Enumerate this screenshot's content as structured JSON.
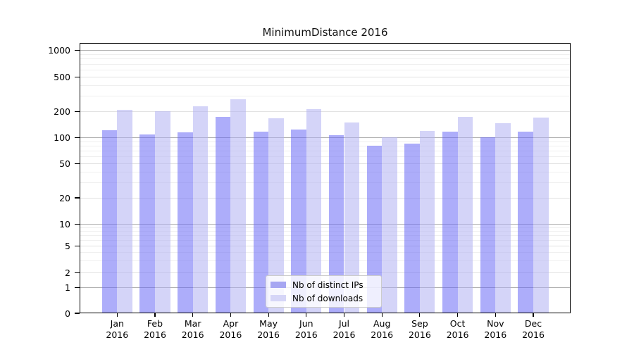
{
  "title": "MinimumDistance 2016",
  "legend": {
    "items": [
      {
        "label": "Nb of distinct IPs",
        "color": "#a7a7f2"
      },
      {
        "label": "Nb of downloads",
        "color": "#d6d6f7"
      }
    ]
  },
  "colors": {
    "bar_ips": "rgba(106,106,246,0.55)",
    "bar_downloads": "rgba(176,176,242,0.55)",
    "grid_major": "#b0b0b0",
    "grid_mid": "#e2e2e2",
    "grid_minor": "#efefef",
    "axis": "#000000"
  },
  "chart_data": {
    "type": "bar",
    "title": "MinimumDistance 2016",
    "categories": [
      "Jan",
      "Feb",
      "Mar",
      "Apr",
      "May",
      "Jun",
      "Jul",
      "Aug",
      "Sep",
      "Oct",
      "Nov",
      "Dec"
    ],
    "year": "2016",
    "series": [
      {
        "name": "Nb of distinct IPs",
        "values": [
          122,
          109,
          116,
          175,
          118,
          124,
          107,
          81,
          85,
          117,
          101,
          118
        ]
      },
      {
        "name": "Nb of downloads",
        "values": [
          210,
          200,
          231,
          277,
          166,
          211,
          150,
          102,
          120,
          175,
          147,
          171
        ]
      }
    ],
    "xlabel": "",
    "ylabel": "",
    "yscale": "log (symlog-like, 0 at baseline)",
    "yticks": [
      0,
      1,
      2,
      5,
      10,
      20,
      50,
      100,
      200,
      500,
      1000
    ],
    "ylim": [
      0,
      1200
    ],
    "grid": true,
    "legend_position": "lower center"
  }
}
